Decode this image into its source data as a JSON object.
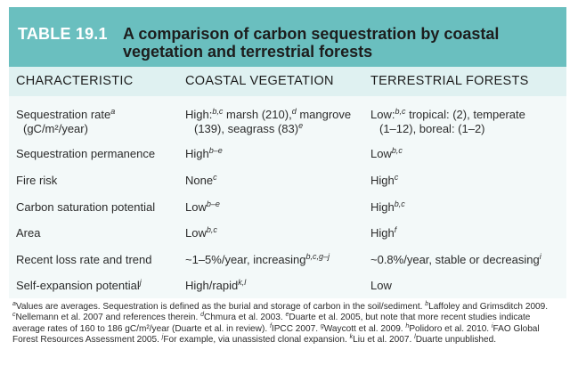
{
  "table": {
    "number": "TABLE 19.1",
    "title": "A comparison of carbon sequestration by coastal vegetation and terrestrial forests",
    "headers": [
      "CHARACTERISTIC",
      "COASTAL VEGETATION",
      "TERRESTRIAL FORESTS"
    ],
    "rows": [
      {
        "characteristic": "Sequestration rate",
        "characteristic_sup": "a",
        "characteristic_line2": "(gC/m²/year)",
        "coastal": [
          {
            "t": "High:"
          },
          {
            "s": "b,c"
          },
          {
            "t": " marsh (210),"
          },
          {
            "s": "d"
          },
          {
            "t": " mangrove"
          },
          {
            "br": true
          },
          {
            "t": "(139), seagrass (83)"
          },
          {
            "s": "e"
          }
        ],
        "terrestrial": [
          {
            "t": "Low:"
          },
          {
            "s": "b,c"
          },
          {
            "t": " tropical: (2), temperate"
          },
          {
            "br": true
          },
          {
            "t": "(1–12), boreal: (1–2)"
          }
        ]
      },
      {
        "characteristic": "Sequestration permanence",
        "coastal": [
          {
            "t": "High"
          },
          {
            "s": "b–e"
          }
        ],
        "terrestrial": [
          {
            "t": "Low"
          },
          {
            "s": "b,c"
          }
        ]
      },
      {
        "characteristic": "Fire risk",
        "coastal": [
          {
            "t": "None"
          },
          {
            "s": "c"
          }
        ],
        "terrestrial": [
          {
            "t": "High"
          },
          {
            "s": "c"
          }
        ]
      },
      {
        "characteristic": "Carbon saturation potential",
        "coastal": [
          {
            "t": "Low"
          },
          {
            "s": "b–e"
          }
        ],
        "terrestrial": [
          {
            "t": "High"
          },
          {
            "s": "b,c"
          }
        ]
      },
      {
        "characteristic": "Area",
        "coastal": [
          {
            "t": "Low"
          },
          {
            "s": "b,c"
          }
        ],
        "terrestrial": [
          {
            "t": "High"
          },
          {
            "s": "f"
          }
        ]
      },
      {
        "characteristic": "Recent loss rate and trend",
        "coastal": [
          {
            "t": "~1–5%/year, increasing"
          },
          {
            "s": "b,c,g–j"
          }
        ],
        "terrestrial": [
          {
            "t": "~0.8%/year, stable or decreasing"
          },
          {
            "s": "i"
          }
        ]
      },
      {
        "characteristic": "Self-expansion potential",
        "characteristic_sup": "j",
        "coastal": [
          {
            "t": "High/rapid"
          },
          {
            "s": "k,l"
          }
        ],
        "terrestrial": [
          {
            "t": "Low"
          }
        ]
      }
    ],
    "footnote": [
      {
        "s": "a"
      },
      {
        "t": "Values are averages. Sequestration is defined as the burial and storage of carbon in the soil/sediment. "
      },
      {
        "s": "b"
      },
      {
        "t": "Laffoley and Grimsditch 2009. "
      },
      {
        "s": "c"
      },
      {
        "t": "Nellemann et al. 2007 and references therein. "
      },
      {
        "s": "d"
      },
      {
        "t": "Chmura et al. 2003. "
      },
      {
        "s": "e"
      },
      {
        "t": "Duarte et al. 2005, but note that more recent studies indicate average rates of 160 to 186 gC/m²/year (Duarte et al. in review). "
      },
      {
        "s": "f"
      },
      {
        "t": "IPCC 2007. "
      },
      {
        "s": "g"
      },
      {
        "t": "Waycott et al. 2009. "
      },
      {
        "s": "h"
      },
      {
        "t": "Polidoro et al. 2010. "
      },
      {
        "s": "i"
      },
      {
        "t": "FAO Global Forest Resources Assessment 2005. "
      },
      {
        "s": "j"
      },
      {
        "t": "For example, via unassisted clonal expansion. "
      },
      {
        "s": "k"
      },
      {
        "t": "Liu et al. 2007. "
      },
      {
        "s": "l"
      },
      {
        "t": "Duarte unpublished."
      }
    ]
  }
}
